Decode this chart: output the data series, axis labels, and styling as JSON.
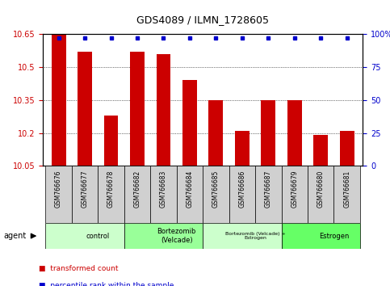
{
  "title": "GDS4089 / ILMN_1728605",
  "samples": [
    "GSM766676",
    "GSM766677",
    "GSM766678",
    "GSM766682",
    "GSM766683",
    "GSM766684",
    "GSM766685",
    "GSM766686",
    "GSM766687",
    "GSM766679",
    "GSM766680",
    "GSM766681"
  ],
  "values": [
    10.65,
    10.57,
    10.28,
    10.57,
    10.56,
    10.44,
    10.35,
    10.21,
    10.35,
    10.35,
    10.19,
    10.21
  ],
  "bar_color": "#cc0000",
  "dot_color": "#0000cc",
  "ylim_min": 10.05,
  "ylim_max": 10.65,
  "yticks": [
    10.05,
    10.2,
    10.35,
    10.5,
    10.65
  ],
  "y2ticks": [
    0,
    25,
    50,
    75,
    100
  ],
  "groups": [
    {
      "label": "control",
      "start": 0,
      "end": 3,
      "color": "#ccffcc",
      "fontsize": 8
    },
    {
      "label": "Bortezomib\n(Velcade)",
      "start": 3,
      "end": 6,
      "color": "#99ff99",
      "fontsize": 8
    },
    {
      "label": "Bortezomib (Velcade) +\nEstrogen",
      "start": 6,
      "end": 9,
      "color": "#ccffcc",
      "fontsize": 6
    },
    {
      "label": "Estrogen",
      "start": 9,
      "end": 12,
      "color": "#66ff66",
      "fontsize": 8
    }
  ],
  "legend_items": [
    {
      "color": "#cc0000",
      "label": "transformed count"
    },
    {
      "color": "#0000cc",
      "label": "percentile rank within the sample"
    }
  ],
  "agent_label": "agent",
  "sample_bg_color": "#d0d0d0"
}
